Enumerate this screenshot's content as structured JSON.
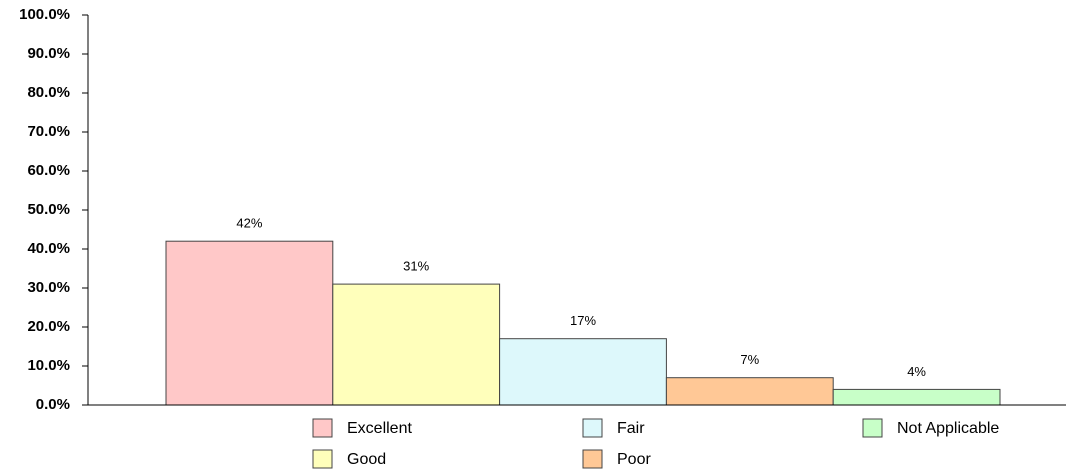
{
  "chart_data": {
    "type": "bar",
    "categories": [
      null
    ],
    "series": [
      {
        "name": "Excellent",
        "color": "#ffc8c8",
        "values": [
          42
        ],
        "value_labels": [
          "42%"
        ]
      },
      {
        "name": "Good",
        "color": "#ffffbb",
        "values": [
          31
        ],
        "value_labels": [
          "31%"
        ]
      },
      {
        "name": "Fair",
        "color": "#ddf8fb",
        "values": [
          17
        ],
        "value_labels": [
          "17%"
        ]
      },
      {
        "name": "Poor",
        "color": "#ffc896",
        "values": [
          7
        ],
        "value_labels": [
          "7%"
        ]
      },
      {
        "name": "Not Applicable",
        "color": "#c8ffc8",
        "values": [
          4
        ],
        "value_labels": [
          "4%"
        ]
      }
    ],
    "ylim": [
      0,
      100
    ],
    "yticks": [
      {
        "value": 0,
        "label": "0.0%"
      },
      {
        "value": 10,
        "label": "10.0%"
      },
      {
        "value": 20,
        "label": "20.0%"
      },
      {
        "value": 30,
        "label": "30.0%"
      },
      {
        "value": 40,
        "label": "40.0%"
      },
      {
        "value": 50,
        "label": "50.0%"
      },
      {
        "value": 60,
        "label": "60.0%"
      },
      {
        "value": 70,
        "label": "70.0%"
      },
      {
        "value": 80,
        "label": "80.0%"
      },
      {
        "value": 90,
        "label": "90.0%"
      },
      {
        "value": 100,
        "label": "100.0%"
      }
    ],
    "legend": "bottom"
  }
}
